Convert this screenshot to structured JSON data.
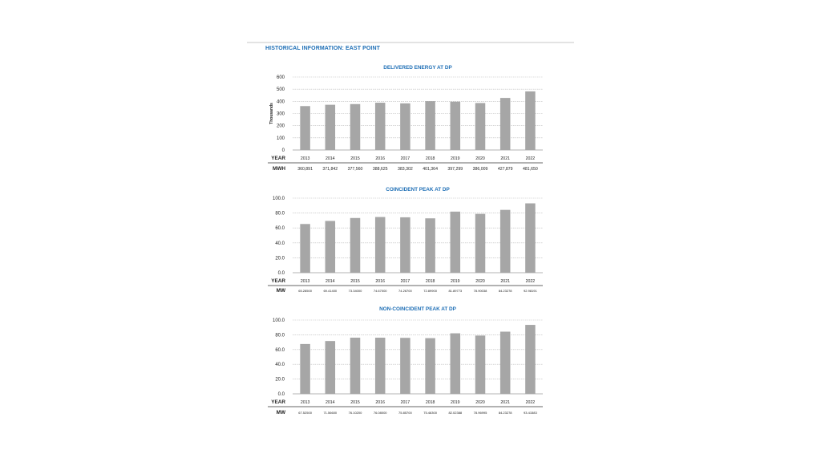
{
  "page": {
    "title": "HISTORICAL INFORMATION: EAST POINT"
  },
  "colors": {
    "bar": "#a6a6a6",
    "title": "#1f6fb6",
    "grid": "#bdbdbd",
    "text": "#222222"
  },
  "chart_data": [
    {
      "type": "bar",
      "title": "DELIVERED ENERGY AT DP",
      "ylabel": "Thousands",
      "ylim": [
        0,
        600
      ],
      "yticks": [
        "600",
        "500",
        "400",
        "300",
        "200",
        "100",
        "0"
      ],
      "yticks_values": [
        600,
        500,
        400,
        300,
        200,
        100,
        0
      ],
      "categories": [
        "2013",
        "2014",
        "2015",
        "2016",
        "2017",
        "2018",
        "2019",
        "2020",
        "2021",
        "2022"
      ],
      "values": [
        360.891,
        371.842,
        377.56,
        388.625,
        383.302,
        401.364,
        397.299,
        386.009,
        427.879,
        481.65
      ],
      "grid": true,
      "table": {
        "row1_label": "YEAR",
        "row2_label": "MWH",
        "row2_values": [
          "360,891",
          "371,842",
          "377,560",
          "388,625",
          "383,302",
          "401,364",
          "397,299",
          "386,009",
          "427,879",
          "481,650"
        ]
      }
    },
    {
      "type": "bar",
      "title": "COINCIDENT PEAK AT DP",
      "ylabel": "",
      "ylim": [
        0,
        100
      ],
      "yticks": [
        "100.0",
        "80.0",
        "60.0",
        "40.0",
        "20.0",
        "0.0"
      ],
      "yticks_values": [
        100,
        80,
        60,
        40,
        20,
        0
      ],
      "categories": [
        "2013",
        "2014",
        "2015",
        "2016",
        "2017",
        "2018",
        "2019",
        "2020",
        "2021",
        "2022"
      ],
      "values": [
        65.285,
        69.414,
        73.34,
        74.67,
        74.267,
        72.899,
        81.89773,
        78.90038,
        84.23278,
        92.98191
      ],
      "grid": true,
      "table": {
        "row1_label": "YEAR",
        "row2_label": "MW",
        "row2_values": [
          "65.28500",
          "69.41400",
          "73.34000",
          "74.67000",
          "74.26700",
          "72.89900",
          "81.89773",
          "78.90038",
          "84.23278",
          "92.98191"
        ]
      }
    },
    {
      "type": "bar",
      "title": "NON-COINCIDENT PEAK AT DP",
      "ylabel": "",
      "ylim": [
        0,
        100
      ],
      "yticks": [
        "100.0",
        "80.0",
        "60.0",
        "40.0",
        "20.0",
        "0.0"
      ],
      "yticks_values": [
        100,
        80,
        60,
        40,
        20,
        0
      ],
      "categories": [
        "2013",
        "2014",
        "2015",
        "2016",
        "2017",
        "2018",
        "2019",
        "2020",
        "2021",
        "2022"
      ],
      "values": [
        67.525,
        71.566,
        76.102,
        76.08,
        75.857,
        75.463,
        82.02388,
        78.96995,
        84.23278,
        93.41583
      ],
      "grid": true,
      "table": {
        "row1_label": "YEAR",
        "row2_label": "MW",
        "row2_values": [
          "67.52500",
          "71.56600",
          "76.10200",
          "76.08000",
          "75.85700",
          "75.46300",
          "82.02388",
          "78.96995",
          "84.23278",
          "93.41583"
        ]
      }
    }
  ]
}
